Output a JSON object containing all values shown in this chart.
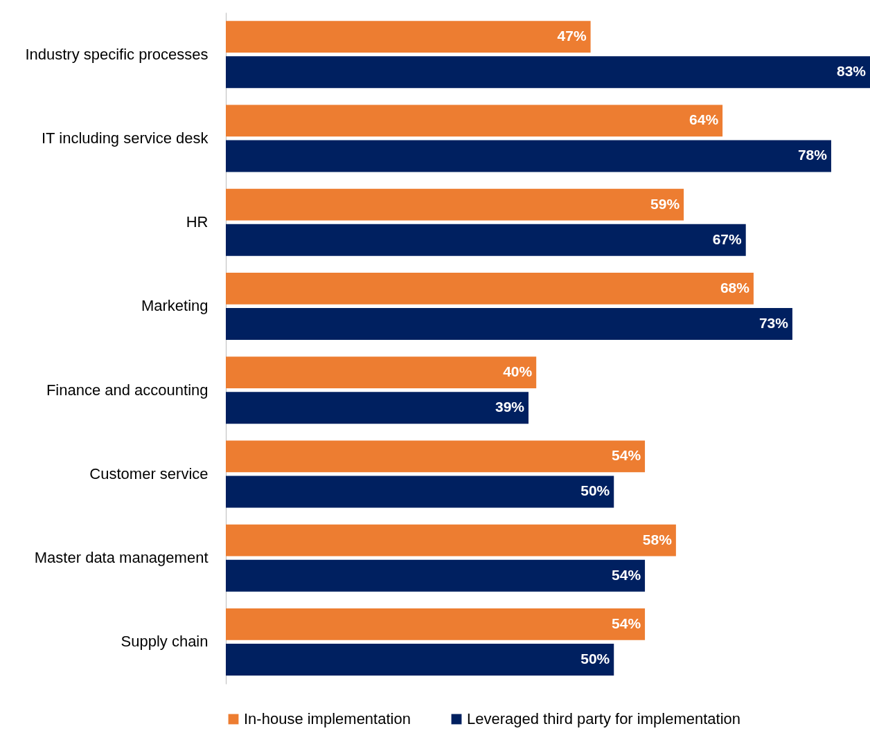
{
  "chart_data": {
    "type": "bar",
    "orientation": "horizontal",
    "categories": [
      "Industry specific processes",
      "IT including service desk",
      "HR",
      "Marketing",
      "Finance and accounting",
      "Customer service",
      "Master data management",
      "Supply chain"
    ],
    "series": [
      {
        "name": "In-house implementation",
        "color": "#ed7d31",
        "values": [
          47,
          64,
          59,
          68,
          40,
          54,
          58,
          54
        ],
        "value_labels": [
          "47%",
          "64%",
          "59%",
          "68%",
          "40%",
          "54%",
          "58%",
          "54%"
        ]
      },
      {
        "name": "Leveraged third party for implementation",
        "color": "#002060",
        "values": [
          83,
          78,
          67,
          73,
          39,
          50,
          54,
          50
        ],
        "value_labels": [
          "83%",
          "78%",
          "67%",
          "73%",
          "39%",
          "50%",
          "54%",
          "50%"
        ]
      }
    ],
    "legend": "bottom"
  }
}
